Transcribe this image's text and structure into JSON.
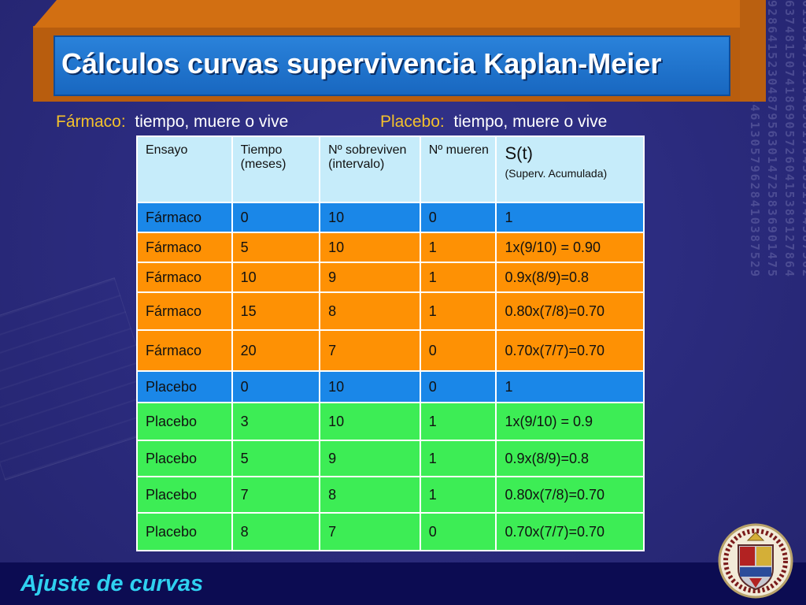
{
  "title": "Cálculos curvas supervivencia Kaplan-Meier",
  "subtitle": {
    "left_label": "Fármaco:",
    "left_text": "tiempo,  muere o vive",
    "right_label": "Placebo:",
    "right_text": "tiempo, muere o vive"
  },
  "table": {
    "headers": [
      "Ensayo",
      "Tiempo (meses)",
      "Nº sobreviven (intervalo)",
      "Nº mueren",
      "S(t)"
    ],
    "header_st_note": "(Superv. Acumulada)",
    "rows": [
      {
        "style": "blue",
        "cells": [
          "Fármaco",
          "0",
          "10",
          "0",
          "1"
        ]
      },
      {
        "style": "orange",
        "cells": [
          "Fármaco",
          "5",
          "10",
          "1",
          "1x(9/10) = 0.90"
        ]
      },
      {
        "style": "orange",
        "cells": [
          "Fármaco",
          "10",
          "9",
          "1",
          "0.9x(8/9)=0.8"
        ]
      },
      {
        "style": "orange",
        "cells": [
          "Fármaco",
          "15",
          "8",
          "1",
          "0.80x(7/8)=0.70"
        ]
      },
      {
        "style": "orange",
        "cells": [
          "Fármaco",
          "20",
          "7",
          "0",
          "0.70x(7/7)=0.70"
        ]
      },
      {
        "style": "blue",
        "cells": [
          "Placebo",
          "0",
          "10",
          "0",
          "1"
        ]
      },
      {
        "style": "green",
        "cells": [
          "Placebo",
          "3",
          "10",
          "1",
          "1x(9/10) = 0.9"
        ]
      },
      {
        "style": "green",
        "cells": [
          "Placebo",
          "5",
          "9",
          "1",
          "0.9x(8/9)=0.8"
        ]
      },
      {
        "style": "green",
        "cells": [
          "Placebo",
          "7",
          "8",
          "1",
          "0.80x(7/8)=0.70"
        ]
      },
      {
        "style": "green",
        "cells": [
          "Placebo",
          "8",
          "7",
          "0",
          "0.70x(7/7)=0.70"
        ]
      }
    ]
  },
  "footer": "Ajuste de curvas",
  "colors": {
    "background": "#2c2c80",
    "title_box": "#1a73d0",
    "title_frame": "#d26f12",
    "accent_label": "#f3c12c",
    "header_row": "#c6ecfa",
    "base_row": "#1a87e8",
    "farmaco_row": "#fe9104",
    "placebo_row": "#3ded55",
    "footer_text": "#2fd0f0"
  },
  "icons": {
    "seal": "university-seal-icon"
  }
}
